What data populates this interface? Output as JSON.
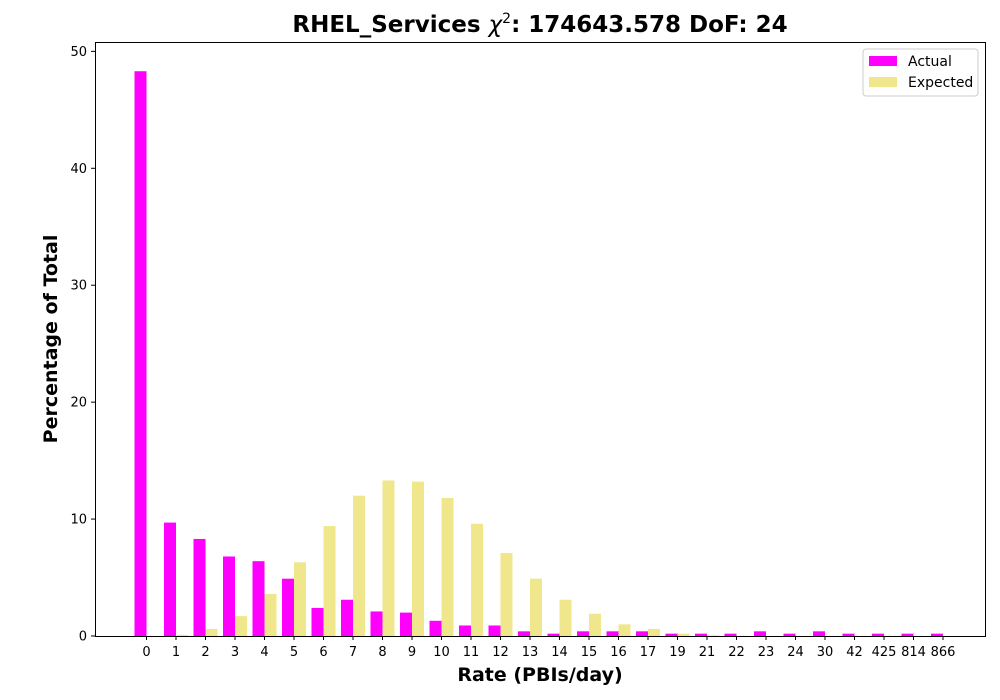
{
  "chart_data": {
    "type": "bar",
    "title_main": "RHEL_Services ",
    "title_chi": "χ",
    "title_chi_sup": "2",
    "title_rest": ": 174643.578 DoF: 24",
    "xlabel": "Rate (PBIs/day)",
    "ylabel": "Percentage of Total",
    "ylim": [
      0,
      50.8
    ],
    "yticks": [
      0,
      10,
      20,
      30,
      40,
      50
    ],
    "categories": [
      "0",
      "1",
      "2",
      "3",
      "4",
      "5",
      "6",
      "7",
      "8",
      "9",
      "10",
      "11",
      "12",
      "13",
      "14",
      "15",
      "16",
      "17",
      "19",
      "21",
      "22",
      "23",
      "24",
      "30",
      "42",
      "425",
      "814",
      "866"
    ],
    "series": [
      {
        "name": "Actual",
        "color": "#ff00ff",
        "values": [
          48.3,
          9.7,
          8.3,
          6.8,
          6.4,
          4.9,
          2.4,
          3.1,
          2.1,
          2.0,
          1.3,
          0.9,
          0.9,
          0.4,
          0.2,
          0.4,
          0.4,
          0.4,
          0.2,
          0.2,
          0.2,
          0.4,
          0.2,
          0.4,
          0.2,
          0.2,
          0.2,
          0.2
        ]
      },
      {
        "name": "Expected",
        "color": "#f0e68c",
        "values": [
          0.0,
          0.1,
          0.6,
          1.7,
          3.6,
          6.3,
          9.4,
          12.0,
          13.3,
          13.2,
          11.8,
          9.6,
          7.1,
          4.9,
          3.1,
          1.9,
          1.0,
          0.6,
          0.2,
          0.05,
          0.02,
          0.01,
          0.0,
          0.0,
          0.0,
          0.0,
          0.0,
          0.0
        ]
      }
    ],
    "grid": false,
    "legend_position": "top-right"
  }
}
